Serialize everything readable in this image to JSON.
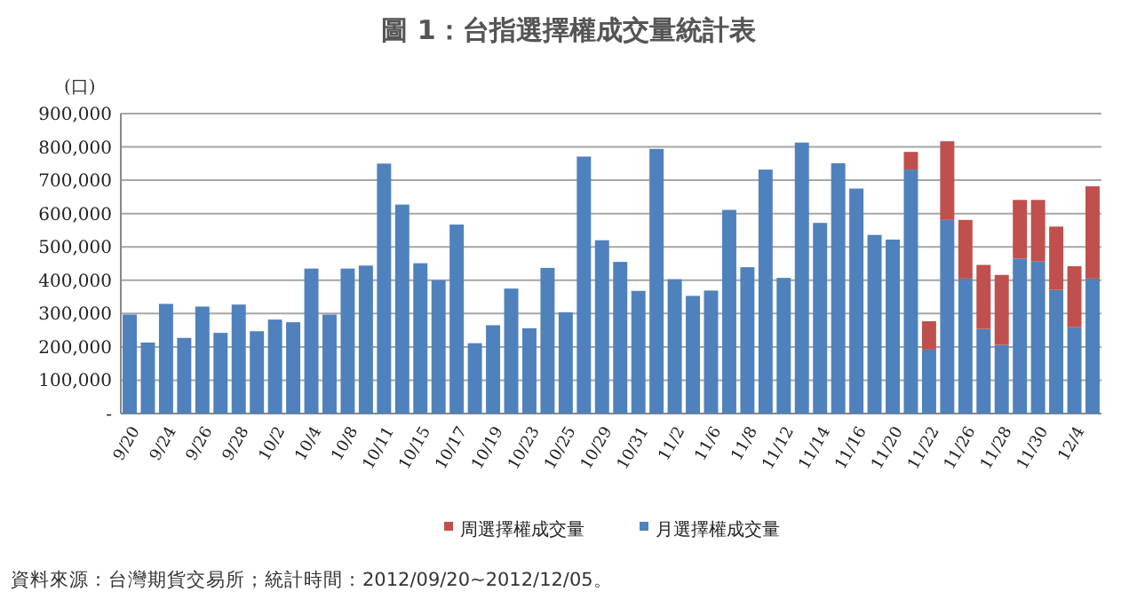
{
  "chart_data": {
    "type": "bar",
    "stacked": true,
    "title": "圖 1：台指選擇權成交量統計表",
    "ylabel": "(口)",
    "categories": [
      "9/20",
      null,
      "9/24",
      null,
      "9/26",
      null,
      "9/28",
      null,
      "10/2",
      null,
      "10/4",
      null,
      "10/8",
      null,
      "10/11",
      null,
      "10/15",
      null,
      "10/17",
      null,
      "10/19",
      null,
      "10/23",
      null,
      "10/25",
      null,
      "10/29",
      null,
      "10/31",
      null,
      "11/2",
      null,
      "11/6",
      null,
      "11/8",
      null,
      "11/12",
      null,
      "11/14",
      null,
      "11/16",
      null,
      "11/20",
      null,
      "11/22",
      null,
      "11/26",
      null,
      "11/28",
      null,
      "11/30",
      null,
      "12/4",
      null
    ],
    "series": [
      {
        "name": "月選擇權成交量",
        "color": "#4f81bd",
        "values": [
          297000,
          213000,
          329000,
          227000,
          321000,
          242000,
          327000,
          247000,
          282000,
          274000,
          435000,
          297000,
          435000,
          444000,
          750000,
          627000,
          451000,
          400000,
          567000,
          211000,
          265000,
          375000,
          256000,
          437000,
          304000,
          771000,
          520000,
          455000,
          368000,
          794000,
          403000,
          353000,
          369000,
          611000,
          439000,
          732000,
          407000,
          813000,
          572000,
          751000,
          675000,
          536000,
          522000,
          732000,
          192000,
          581000,
          405000,
          254000,
          206000,
          465000,
          456000,
          371000,
          259000,
          405000
        ]
      },
      {
        "name": "周選擇權成交量",
        "color": "#c0504d",
        "values": [
          null,
          null,
          null,
          null,
          null,
          null,
          null,
          null,
          null,
          null,
          null,
          null,
          null,
          null,
          null,
          null,
          null,
          null,
          null,
          null,
          null,
          null,
          null,
          null,
          null,
          null,
          null,
          null,
          null,
          null,
          null,
          null,
          null,
          null,
          null,
          null,
          null,
          null,
          null,
          null,
          null,
          null,
          null,
          53000,
          85000,
          236000,
          176000,
          192000,
          210000,
          176000,
          185000,
          190000,
          183000,
          277000
        ]
      }
    ],
    "ylim": [
      0,
      900000
    ],
    "yticks": [
      {
        "value": 0,
        "label": "-"
      },
      {
        "value": 100000,
        "label": "100,000"
      },
      {
        "value": 200000,
        "label": "200,000"
      },
      {
        "value": 300000,
        "label": "300,000"
      },
      {
        "value": 400000,
        "label": "400,000"
      },
      {
        "value": 500000,
        "label": "500,000"
      },
      {
        "value": 600000,
        "label": "600,000"
      },
      {
        "value": 700000,
        "label": "700,000"
      },
      {
        "value": 800000,
        "label": "800,000"
      },
      {
        "value": 900000,
        "label": "900,000"
      }
    ],
    "grid": "y",
    "legend": "bottom",
    "annotations": [
      "資料來源：台灣期貨交易所；統計時間：2012/09/20~2012/12/05。"
    ]
  }
}
